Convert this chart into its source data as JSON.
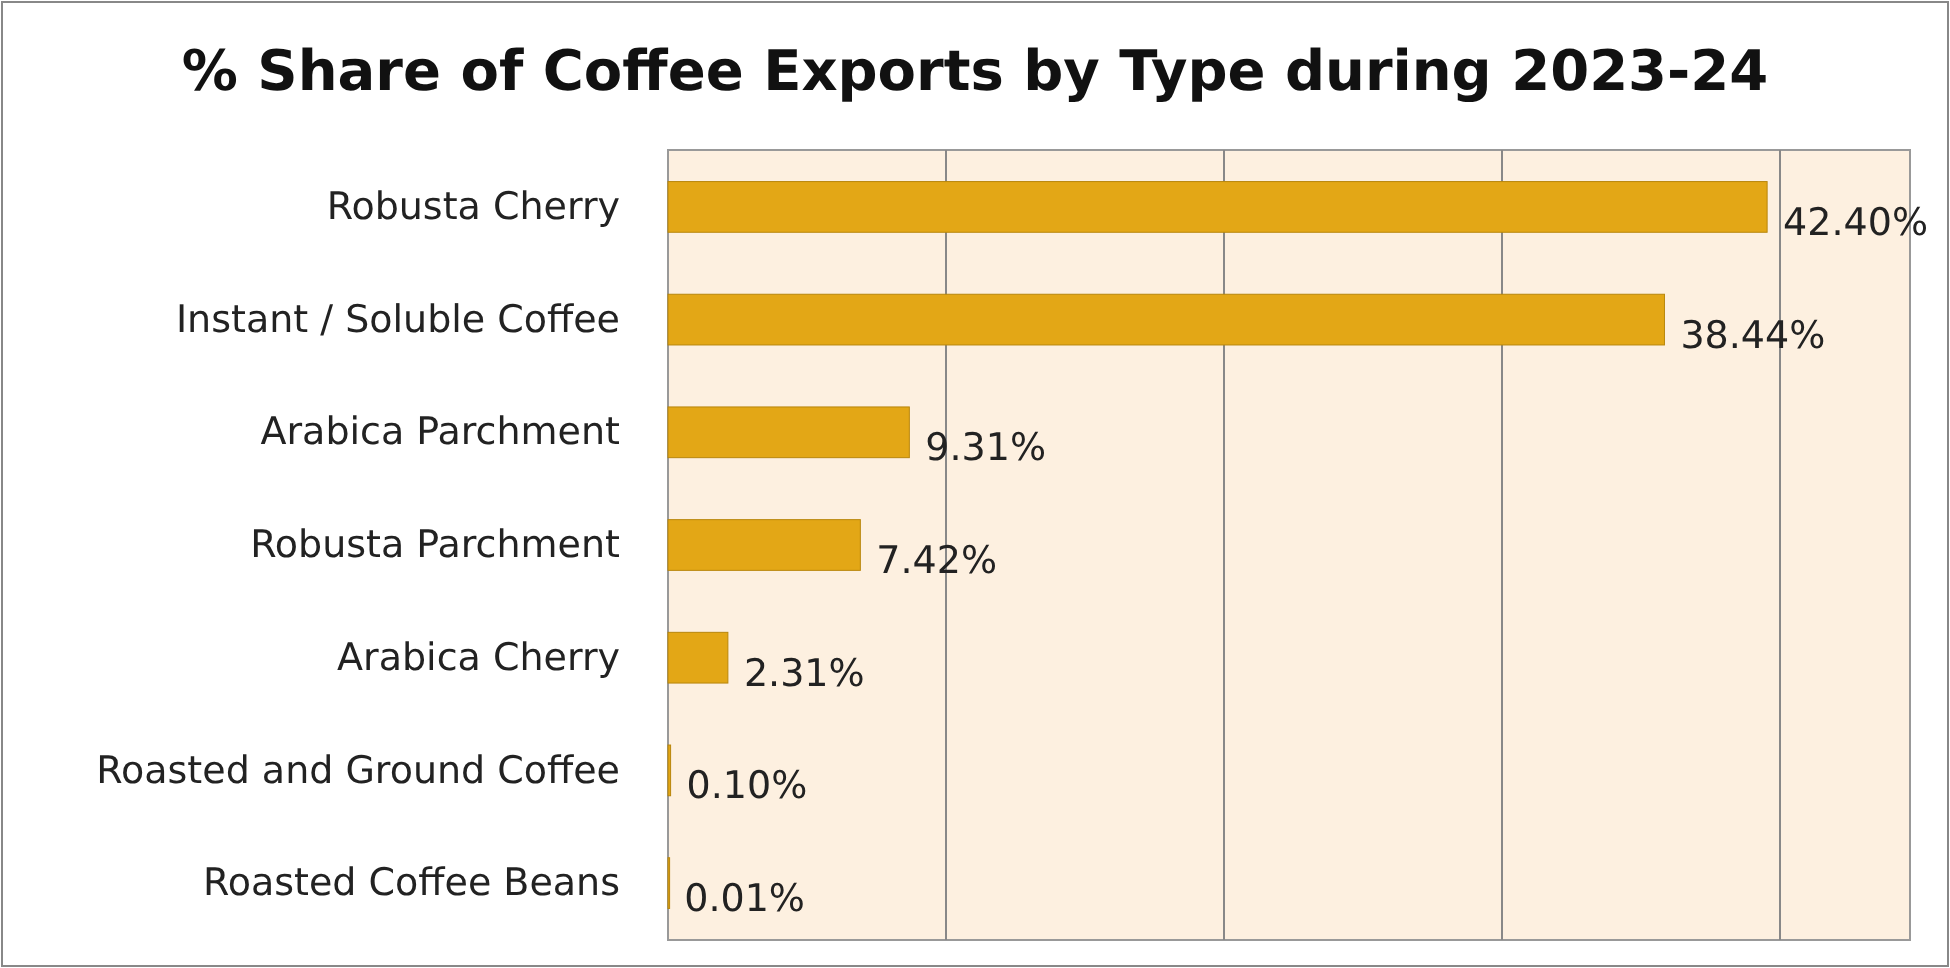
{
  "chart_data": {
    "type": "bar",
    "orientation": "horizontal",
    "title": "% Share of Coffee Exports by Type during 2023-24",
    "categories": [
      "Robusta Cherry",
      "Instant / Soluble Coffee",
      "Arabica Parchment",
      "Robusta Parchment",
      "Arabica Cherry",
      "Roasted and Ground Coffee",
      "Roasted Coffee Beans"
    ],
    "values": [
      42.4,
      38.44,
      9.31,
      7.42,
      2.31,
      0.1,
      0.01
    ],
    "value_labels": [
      "42.40%",
      "38.44%",
      "9.31%",
      "7.42%",
      "2.31%",
      "0.10%",
      "0.01%"
    ],
    "color": "#e3a716",
    "grid": "x",
    "tick_labels": "y"
  }
}
